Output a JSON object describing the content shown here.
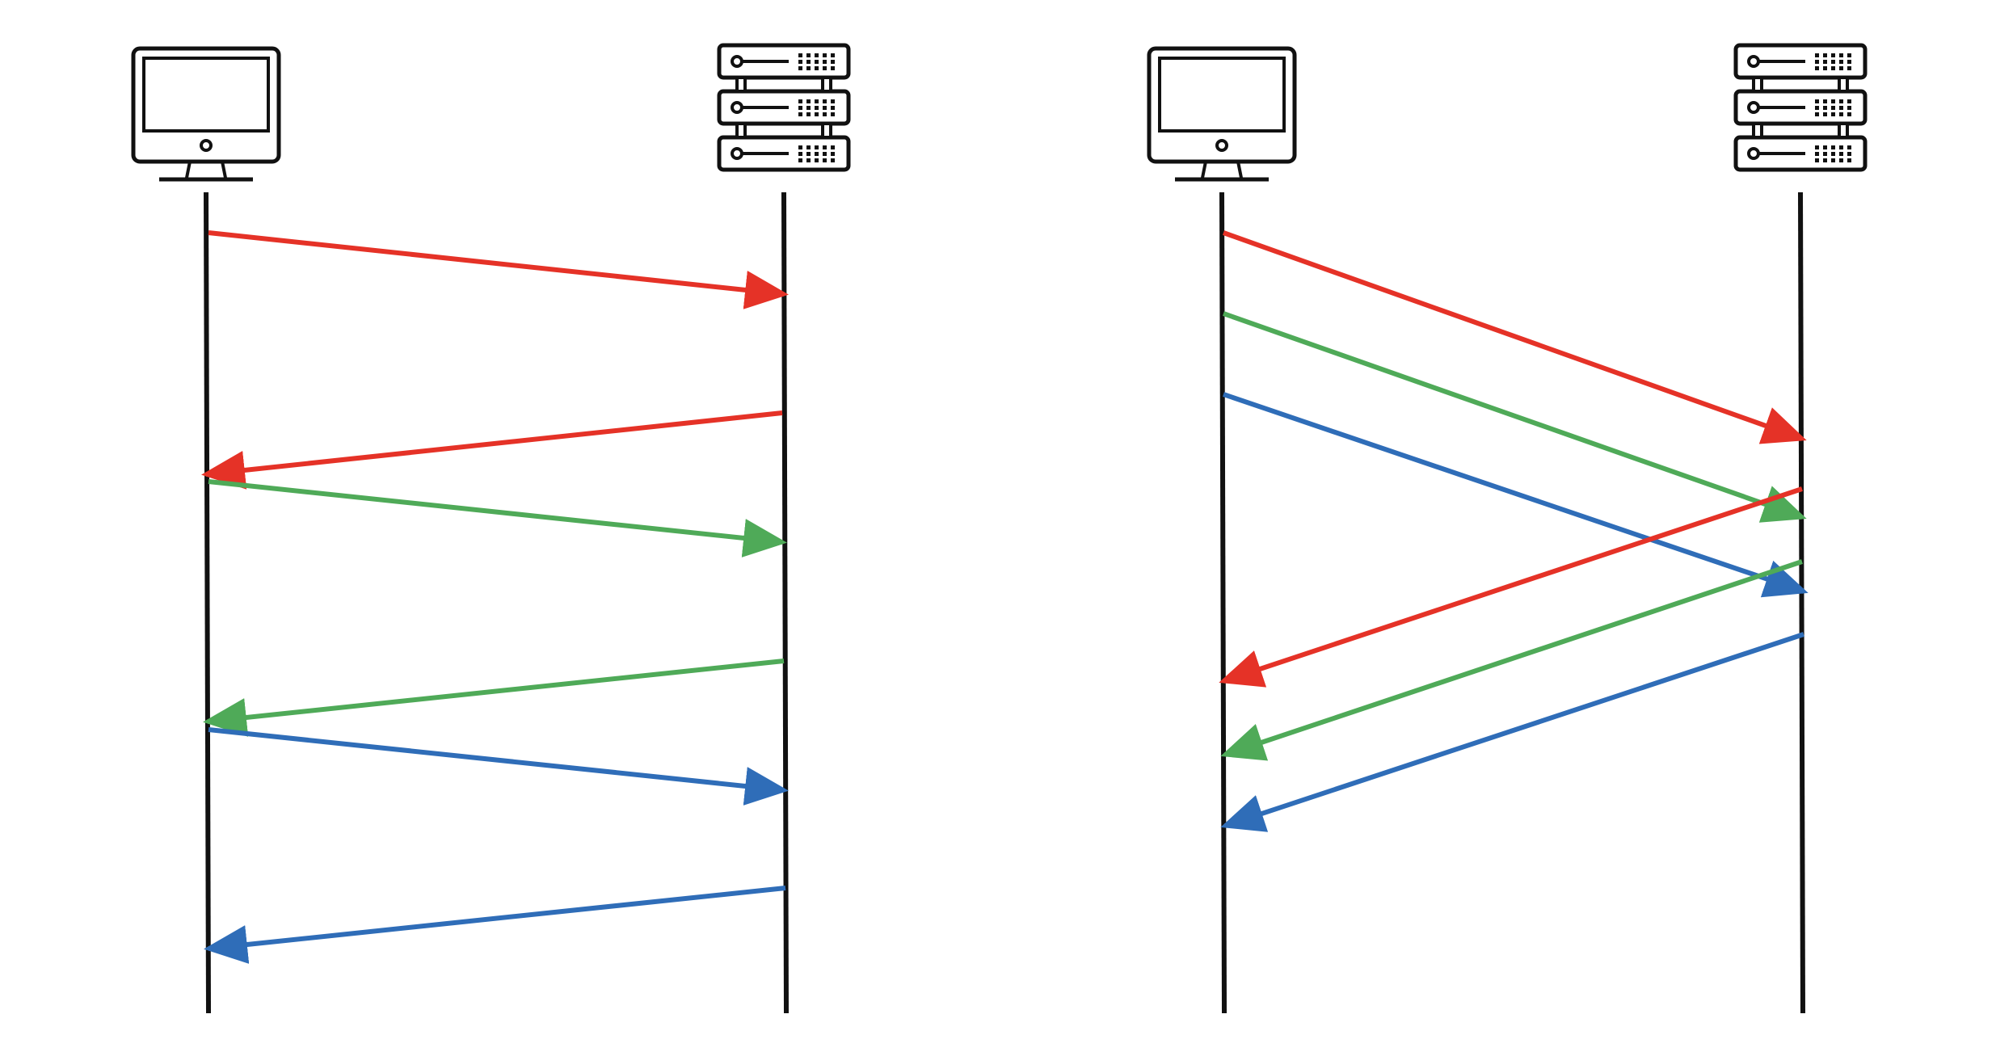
{
  "colors": {
    "red": "#e53227",
    "green": "#4faa58",
    "blue": "#2f6db8",
    "stroke": "#111111",
    "background": "#ffffff"
  },
  "diagrams": [
    {
      "name": "sequential",
      "client_icon": "desktop-computer-icon",
      "server_icon": "server-rack-icon",
      "messages": [
        {
          "color": "red",
          "direction": "request",
          "order": 1
        },
        {
          "color": "red",
          "direction": "response",
          "order": 2
        },
        {
          "color": "green",
          "direction": "request",
          "order": 3
        },
        {
          "color": "green",
          "direction": "response",
          "order": 4
        },
        {
          "color": "blue",
          "direction": "request",
          "order": 5
        },
        {
          "color": "blue",
          "direction": "response",
          "order": 6
        }
      ]
    },
    {
      "name": "pipelined",
      "client_icon": "desktop-computer-icon",
      "server_icon": "server-rack-icon",
      "messages": [
        {
          "color": "red",
          "direction": "request",
          "order": 1
        },
        {
          "color": "green",
          "direction": "request",
          "order": 2
        },
        {
          "color": "blue",
          "direction": "request",
          "order": 3
        },
        {
          "color": "red",
          "direction": "response",
          "order": 4
        },
        {
          "color": "green",
          "direction": "response",
          "order": 5
        },
        {
          "color": "blue",
          "direction": "response",
          "order": 6
        }
      ]
    }
  ]
}
